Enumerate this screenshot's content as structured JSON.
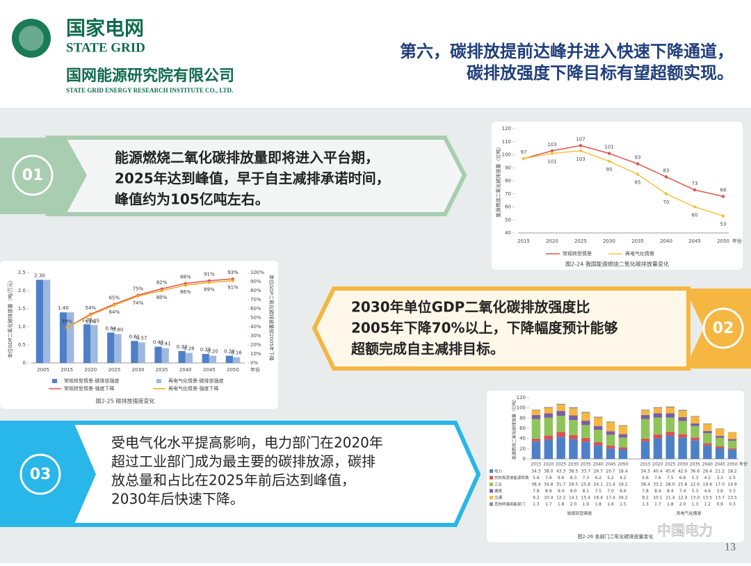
{
  "header": {
    "logo_cn": "国家电网",
    "logo_en": "STATE GRID",
    "institute_cn": "国网能源研究院有限公司",
    "institute_en": "STATE GRID ENERGY RESEARCH INSTITUTE CO., LTD.",
    "title_lines": [
      "第六，碳排放提前达峰并进入快速下降通道，",
      "碳排放强度下降目标有望超额实现。"
    ]
  },
  "callouts": [
    {
      "number": "01",
      "lines": [
        "能源燃烧二氧化碳排放量即将进入平台期，",
        "2025年达到峰值，早于自主减排承诺时间，",
        "峰值约为105亿吨左右。"
      ]
    },
    {
      "number": "02",
      "lines": [
        "2030年单位GDP二氧化碳排放强度比",
        "2005年下降70%以上，下降幅度预计能够",
        "超额完成自主减排目标。"
      ]
    },
    {
      "number": "03",
      "lines": [
        "受电气化水平提高影响，电力部门在2020年",
        "超过工业部门成为最主要的碳排放源，碳排",
        "放总量和占比在2025年前后达到峰值，",
        "2030年后快速下降。"
      ]
    }
  ],
  "footer": {
    "brand": "中国电力",
    "page": "13"
  },
  "chart_data": [
    {
      "type": "line",
      "caption": "图2-24 我国能源燃烧二氧化碳排放量变化",
      "y_label": "能源燃烧二氧化碳排放量（亿吨）",
      "x_label": "年份",
      "categories": [
        "2015",
        "2020",
        "2025",
        "2030",
        "2035",
        "2040",
        "2045",
        "2050"
      ],
      "series": [
        {
          "name": "常规转型情景",
          "color": "#e0504a",
          "values": [
            97,
            103,
            107,
            101,
            93,
            83,
            73,
            68
          ],
          "value_labels": [
            "97",
            "103",
            "107",
            "101",
            "93",
            "83",
            "73",
            "68"
          ]
        },
        {
          "name": "再电气化情景",
          "color": "#f5c242",
          "values": [
            97,
            101,
            103,
            95,
            85,
            70,
            60,
            53
          ],
          "value_labels": [
            null,
            "101",
            "103",
            "95",
            "85",
            "70",
            "60",
            "53"
          ]
        }
      ],
      "ylim": [
        40,
        120
      ],
      "yticks": [
        40,
        50,
        60,
        70,
        80,
        90,
        100,
        110,
        120
      ],
      "grid": false
    },
    {
      "type": "bar",
      "caption": "图2-25 碳排放强度变化",
      "y_label": "单位GDP二氧化碳排放量（吨/万元）",
      "y2_label": "单位GDP二氧化碳排放量较2005年下降",
      "x_label": "年份",
      "categories": [
        "2005",
        "2015",
        "2020",
        "2025",
        "2030",
        "2035",
        "2040",
        "2045",
        "2050"
      ],
      "series": [
        {
          "name": "常规转型情景-碳排放强度",
          "color": "#4e80c8",
          "values": [
            2.3,
            1.4,
            1.07,
            0.84,
            0.61,
            0.45,
            0.33,
            0.25,
            0.2
          ],
          "value_labels": [
            "2.30",
            "1.40",
            "1.07",
            "0.84",
            "0.61",
            "0.45",
            "0.33",
            "0.25",
            "0.20"
          ]
        },
        {
          "name": "再电气化情景-碳排放强度",
          "color": "#9fb8e0",
          "values": [
            2.3,
            1.4,
            1.05,
            0.8,
            0.57,
            0.41,
            0.28,
            0.2,
            0.16
          ],
          "value_labels": [
            null,
            null,
            "1.05",
            "0.80",
            "0.57",
            "0.41",
            "0.28",
            "0.20",
            "0.16"
          ]
        },
        {
          "name": "常规转型情景-强度下降",
          "color": "#e0504a",
          "axis": "y2",
          "values": [
            null,
            39,
            54,
            65,
            75,
            82,
            88,
            91,
            93
          ],
          "value_labels": [
            null,
            "39%",
            "54%",
            "65%",
            "75%",
            "82%",
            "88%",
            "91%",
            "93%"
          ]
        },
        {
          "name": "再电气化情景-强度下降",
          "color": "#f5a623",
          "axis": "y2",
          "values": [
            null,
            39,
            53,
            64,
            74,
            80,
            86,
            89,
            91
          ],
          "value_labels": [
            null,
            null,
            "53%",
            "64%",
            "74%",
            "80%",
            "86%",
            "89%",
            "91%"
          ]
        }
      ],
      "ylim": [
        0,
        2.5
      ],
      "yticks": [
        0,
        0.5,
        {
          "value": 1,
          "label": "1.0"
        },
        1.5,
        {
          "value": 2,
          "label": "2.0"
        },
        2.5
      ],
      "y2lim": [
        0,
        100
      ],
      "y2ticks": [
        {
          "value": 0,
          "label": "0%"
        },
        {
          "value": 10,
          "label": "10%"
        },
        {
          "value": 20,
          "label": "20%"
        },
        {
          "value": 30,
          "label": "30%"
        },
        {
          "value": 40,
          "label": "40%"
        },
        {
          "value": 50,
          "label": "50%"
        },
        {
          "value": 60,
          "label": "60%"
        },
        {
          "value": 70,
          "label": "70%"
        },
        {
          "value": 80,
          "label": "80%"
        },
        {
          "value": 90,
          "label": "90%"
        },
        {
          "value": 100,
          "label": "100%"
        }
      ]
    },
    {
      "type": "stacked_bar",
      "caption": "图2-26 各部门二氧化碳排放量变化",
      "y_label": "能源燃烧二氧化碳排放量（亿吨）",
      "x_label": "年份",
      "groups": [
        "常规转型情景",
        "再电气化情景"
      ],
      "categories": [
        "2015",
        "2020",
        "2025",
        "2030",
        "2035",
        "2040",
        "2045",
        "2050",
        "2015",
        "2020",
        "2025",
        "2030",
        "2035",
        "2040",
        "2045",
        "2050"
      ],
      "series": [
        {
          "name": "电力",
          "color": "#4e80c8",
          "values": [
            34.3,
            38,
            43.3,
            38.5,
            33.7,
            26.7,
            20.7,
            18.4,
            34.3,
            40.4,
            45.6,
            42,
            36.6,
            26.4,
            21.2,
            18.2
          ],
          "value_labels": [
            "34.3",
            "38.0",
            "43.3",
            "38.5",
            "33.7",
            "26.7",
            "20.7",
            "18.4",
            "34.3",
            "40.4",
            "45.6",
            "42.0",
            "36.6",
            "26.4",
            "21.2",
            "18.2"
          ]
        },
        {
          "name": "供热和其他能源转换",
          "color": "#d9534f",
          "values": [
            5.6,
            7.9,
            9.6,
            8.3,
            7.3,
            6.2,
            5.2,
            4.2,
            5.6,
            7.6,
            7.5,
            6.6,
            5.3,
            4.2,
            3.3,
            2.5
          ],
          "value_labels": [
            "5.6",
            "7.9",
            "9.6",
            "8.3",
            "7.3",
            "6.2",
            "5.2",
            "4.2",
            "5.6",
            "7.6",
            "7.5",
            "6.6",
            "5.3",
            "4.2",
            "3.3",
            "2.5"
          ]
        },
        {
          "name": "工业",
          "color": "#8fc45a",
          "values": [
            38.4,
            34.8,
            31.7,
            29.5,
            25.8,
            24.1,
            21.4,
            19.2,
            38.4,
            33.2,
            28,
            25.8,
            22.6,
            19.6,
            17,
            14.9
          ],
          "value_labels": [
            "38.4",
            "34.8",
            "31.7",
            "29.5",
            "25.8",
            "24.1",
            "21.4",
            "19.2",
            "38.4",
            "33.2",
            "28.0",
            "25.8",
            "22.6",
            "19.6",
            "17.0",
            "14.9"
          ]
        },
        {
          "name": "建筑",
          "color": "#7b5ea7",
          "values": [
            7.8,
            8.9,
            9.4,
            9,
            8.1,
            7.5,
            7,
            6.6,
            7.8,
            8.4,
            8.4,
            7.4,
            5.3,
            4.6,
            3.6,
            3.3
          ],
          "value_labels": [
            "7.8",
            "8.9",
            "9.4",
            "9.0",
            "8.1",
            "7.5",
            "7.0",
            "6.6",
            "7.8",
            "8.4",
            "8.4",
            "7.4",
            "5.3",
            "4.6",
            "3.6",
            "3.3"
          ]
        },
        {
          "name": "交通",
          "color": "#f5b642",
          "values": [
            9.2,
            10.4,
            12.2,
            14.1,
            15.4,
            16.4,
            17.4,
            16.2,
            9.2,
            10.1,
            11.4,
            12.4,
            13,
            13.5,
            13.7,
            13.5
          ],
          "value_labels": [
            "9.2",
            "10.4",
            "12.2",
            "14.1",
            "15.4",
            "16.4",
            "17.4",
            "16.2",
            "9.2",
            "10.1",
            "11.4",
            "12.4",
            "13.0",
            "13.5",
            "13.7",
            "13.5"
          ]
        },
        {
          "name": "其他终端用能部门",
          "color": "#8c8c8c",
          "values": [
            1.3,
            1.7,
            1.8,
            2,
            1.9,
            1.8,
            1.6,
            1.5,
            1.3,
            1.7,
            1.8,
            2,
            1.3,
            1.2,
            0.9,
            0.3
          ],
          "value_labels": [
            "1.3",
            "1.7",
            "1.8",
            "2.0",
            "1.9",
            "1.8",
            "1.6",
            "1.5",
            "1.3",
            "1.7",
            "1.8",
            "2.0",
            "1.3",
            "1.2",
            "0.9",
            "0.3"
          ]
        }
      ],
      "ylim": [
        0,
        120
      ],
      "yticks": [
        0,
        20,
        40,
        60,
        80,
        100,
        120
      ]
    }
  ]
}
